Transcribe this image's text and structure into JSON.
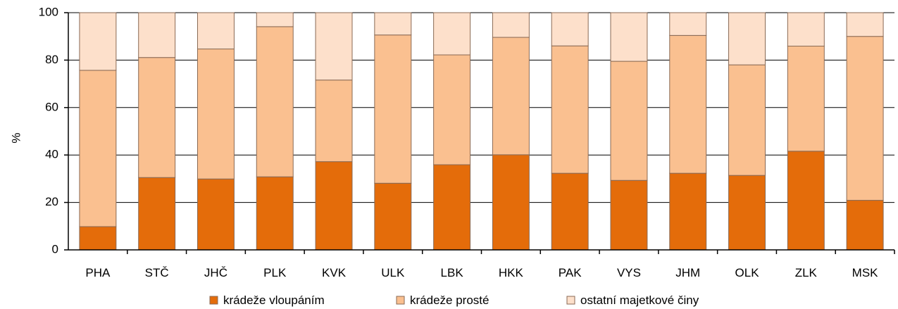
{
  "chart_data": {
    "type": "bar",
    "stacked": true,
    "categories": [
      "PHA",
      "STČ",
      "JHČ",
      "PLK",
      "KVK",
      "ULK",
      "LBK",
      "HKK",
      "PAK",
      "VYS",
      "JHM",
      "OLK",
      "ZLK",
      "MSK"
    ],
    "series": [
      {
        "name": "krádeže vloupáním",
        "color": "#E46C0A",
        "values": [
          9.8,
          30.5,
          29.9,
          30.8,
          37.2,
          28.1,
          35.9,
          40.1,
          32.3,
          29.3,
          32.3,
          31.4,
          41.6,
          20.9
        ]
      },
      {
        "name": "krádeže prosté",
        "color": "#FAC090",
        "values": [
          65.9,
          50.6,
          54.8,
          63.3,
          34.4,
          62.5,
          46.3,
          49.5,
          53.7,
          50.2,
          58.1,
          46.6,
          44.3,
          69.1
        ]
      },
      {
        "name": "ostatní majetkové činy",
        "color": "#FDE0CB",
        "values": [
          24.3,
          18.9,
          15.3,
          5.9,
          28.4,
          9.4,
          17.8,
          10.4,
          14.0,
          20.5,
          9.6,
          22.0,
          14.1,
          10.0
        ]
      }
    ],
    "ylabel": "%",
    "xlabel": "",
    "ylim": [
      0,
      100
    ],
    "yticks": [
      "0",
      "20",
      "40",
      "60",
      "80",
      "100"
    ],
    "grid": true,
    "legend_position": "bottom"
  }
}
